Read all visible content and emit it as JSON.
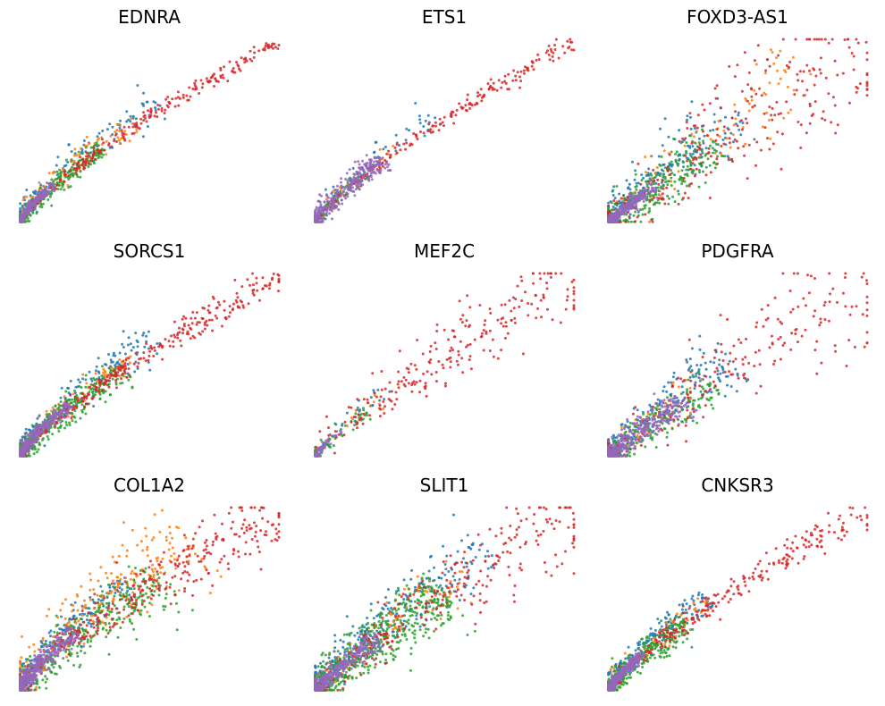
{
  "figure": {
    "layout": {
      "rows": 3,
      "cols": 3
    },
    "series_colors": {
      "blue": "#1f77b4",
      "orange": "#ff7f0e",
      "green": "#2ca02c",
      "red": "#d62728",
      "purple": "#9467bd"
    }
  },
  "chart_data": [
    {
      "type": "scatter",
      "title": "EDNRA",
      "xlabel": "",
      "ylabel": "",
      "xlim": [
        0,
        1
      ],
      "ylim": [
        0,
        1
      ],
      "grid": false,
      "axes": "hidden",
      "trend_power": 0.78,
      "series": [
        {
          "color": "blue",
          "count": 110,
          "xmax": 0.55,
          "spread": 0.06,
          "side": -1,
          "sparse": 0.3
        },
        {
          "color": "orange",
          "count": 90,
          "xmax": 0.45,
          "spread": 0.05,
          "side": -0.8,
          "sparse": 0.4
        },
        {
          "color": "green",
          "count": 260,
          "xmax": 0.32,
          "spread": 0.045,
          "side": 0.2,
          "sparse": 0.1
        },
        {
          "color": "red",
          "count": 230,
          "xmax": 1.0,
          "spread": 0.022,
          "side": 0.4,
          "sparse": 0.55
        },
        {
          "color": "purple",
          "count": 230,
          "xmax": 0.13,
          "spread": 0.022,
          "side": 0,
          "sparse": 0
        }
      ]
    },
    {
      "type": "scatter",
      "title": "ETS1",
      "xlabel": "",
      "ylabel": "",
      "xlim": [
        0,
        1
      ],
      "ylim": [
        0,
        1
      ],
      "grid": false,
      "axes": "hidden",
      "trend_power": 0.82,
      "series": [
        {
          "color": "blue",
          "count": 60,
          "xmax": 0.5,
          "spread": 0.05,
          "side": -1,
          "sparse": 0.3
        },
        {
          "color": "orange",
          "count": 30,
          "xmax": 0.35,
          "spread": 0.04,
          "side": -0.6,
          "sparse": 0.3
        },
        {
          "color": "green",
          "count": 90,
          "xmax": 0.2,
          "spread": 0.035,
          "side": 0.2,
          "sparse": 0.1
        },
        {
          "color": "red",
          "count": 200,
          "xmax": 1.0,
          "spread": 0.02,
          "side": 0.3,
          "sparse": 0.55
        },
        {
          "color": "purple",
          "count": 320,
          "xmax": 0.27,
          "spread": 0.05,
          "side": -0.3,
          "sparse": 0.1
        }
      ]
    },
    {
      "type": "scatter",
      "title": "FOXD3-AS1",
      "xlabel": "",
      "ylabel": "",
      "xlim": [
        0,
        1
      ],
      "ylim": [
        0,
        1
      ],
      "grid": false,
      "axes": "hidden",
      "trend_power": 0.95,
      "series": [
        {
          "color": "blue",
          "count": 230,
          "xmax": 0.55,
          "spread": 0.09,
          "side": -0.8,
          "sparse": 0.2
        },
        {
          "color": "orange",
          "count": 90,
          "xmax": 0.8,
          "spread": 0.09,
          "side": -0.6,
          "sparse": 0.4
        },
        {
          "color": "green",
          "count": 320,
          "xmax": 0.42,
          "spread": 0.09,
          "side": 0.3,
          "sparse": 0.15
        },
        {
          "color": "red",
          "count": 260,
          "xmax": 1.0,
          "spread": 0.13,
          "side": 0.1,
          "sparse": 0.65
        },
        {
          "color": "purple",
          "count": 240,
          "xmax": 0.18,
          "spread": 0.035,
          "side": 0,
          "sparse": 0
        }
      ]
    },
    {
      "type": "scatter",
      "title": "SORCS1",
      "xlabel": "",
      "ylabel": "",
      "xlim": [
        0,
        1
      ],
      "ylim": [
        0,
        1
      ],
      "grid": false,
      "axes": "hidden",
      "trend_power": 0.8,
      "series": [
        {
          "color": "blue",
          "count": 160,
          "xmax": 0.55,
          "spread": 0.06,
          "side": -1,
          "sparse": 0.2
        },
        {
          "color": "orange",
          "count": 70,
          "xmax": 0.45,
          "spread": 0.05,
          "side": -0.6,
          "sparse": 0.3
        },
        {
          "color": "green",
          "count": 320,
          "xmax": 0.4,
          "spread": 0.06,
          "side": 0.2,
          "sparse": 0.1
        },
        {
          "color": "red",
          "count": 300,
          "xmax": 1.0,
          "spread": 0.03,
          "side": 0.3,
          "sparse": 0.55
        },
        {
          "color": "purple",
          "count": 300,
          "xmax": 0.2,
          "spread": 0.03,
          "side": -0.6,
          "sparse": 0
        }
      ]
    },
    {
      "type": "scatter",
      "title": "MEF2C",
      "xlabel": "",
      "ylabel": "",
      "xlim": [
        0,
        1
      ],
      "ylim": [
        0,
        1
      ],
      "grid": false,
      "axes": "hidden",
      "trend_power": 0.85,
      "series": [
        {
          "color": "blue",
          "count": 30,
          "xmax": 0.3,
          "spread": 0.04,
          "side": -0.8,
          "sparse": 0.3
        },
        {
          "color": "orange",
          "count": 20,
          "xmax": 0.25,
          "spread": 0.04,
          "side": -0.5,
          "sparse": 0.3
        },
        {
          "color": "green",
          "count": 70,
          "xmax": 0.2,
          "spread": 0.035,
          "side": 0.2,
          "sparse": 0.1
        },
        {
          "color": "red",
          "count": 230,
          "xmax": 1.0,
          "spread": 0.08,
          "side": 0,
          "sparse": 0.7
        },
        {
          "color": "purple",
          "count": 60,
          "xmax": 0.1,
          "spread": 0.025,
          "side": 0,
          "sparse": 0
        }
      ]
    },
    {
      "type": "scatter",
      "title": "PDGFRA",
      "xlabel": "",
      "ylabel": "",
      "xlim": [
        0,
        1
      ],
      "ylim": [
        0,
        1
      ],
      "grid": false,
      "axes": "hidden",
      "trend_power": 0.95,
      "series": [
        {
          "color": "blue",
          "count": 220,
          "xmax": 0.5,
          "spread": 0.08,
          "side": -0.8,
          "sparse": 0.2
        },
        {
          "color": "orange",
          "count": 60,
          "xmax": 0.4,
          "spread": 0.07,
          "side": -0.4,
          "sparse": 0.3
        },
        {
          "color": "green",
          "count": 200,
          "xmax": 0.4,
          "spread": 0.08,
          "side": 0.3,
          "sparse": 0.15
        },
        {
          "color": "red",
          "count": 200,
          "xmax": 1.0,
          "spread": 0.12,
          "side": 0.1,
          "sparse": 0.65
        },
        {
          "color": "purple",
          "count": 330,
          "xmax": 0.3,
          "spread": 0.07,
          "side": 0.1,
          "sparse": 0.1
        }
      ]
    },
    {
      "type": "scatter",
      "title": "COL1A2",
      "xlabel": "",
      "ylabel": "",
      "xlim": [
        0,
        1
      ],
      "ylim": [
        0,
        1
      ],
      "grid": false,
      "axes": "hidden",
      "trend_power": 0.75,
      "series": [
        {
          "color": "blue",
          "count": 220,
          "xmax": 0.45,
          "spread": 0.06,
          "side": -1,
          "sparse": 0.1
        },
        {
          "color": "orange",
          "count": 260,
          "xmax": 0.7,
          "spread": 0.11,
          "side": -0.9,
          "sparse": 0.35
        },
        {
          "color": "green",
          "count": 330,
          "xmax": 0.55,
          "spread": 0.1,
          "side": 0.5,
          "sparse": 0.2
        },
        {
          "color": "red",
          "count": 330,
          "xmax": 1.0,
          "spread": 0.07,
          "side": 0.3,
          "sparse": 0.55
        },
        {
          "color": "purple",
          "count": 340,
          "xmax": 0.22,
          "spread": 0.05,
          "side": 0,
          "sparse": 0
        }
      ]
    },
    {
      "type": "scatter",
      "title": "SLIT1",
      "xlabel": "",
      "ylabel": "",
      "xlim": [
        0,
        1
      ],
      "ylim": [
        0,
        1
      ],
      "grid": false,
      "axes": "hidden",
      "trend_power": 0.9,
      "series": [
        {
          "color": "blue",
          "count": 300,
          "xmax": 0.7,
          "spread": 0.08,
          "side": -1,
          "sparse": 0.2
        },
        {
          "color": "orange",
          "count": 110,
          "xmax": 0.6,
          "spread": 0.07,
          "side": -0.5,
          "sparse": 0.35
        },
        {
          "color": "green",
          "count": 560,
          "xmax": 0.5,
          "spread": 0.1,
          "side": 0.1,
          "sparse": 0.15
        },
        {
          "color": "red",
          "count": 260,
          "xmax": 1.0,
          "spread": 0.1,
          "side": 0.1,
          "sparse": 0.6
        },
        {
          "color": "purple",
          "count": 340,
          "xmax": 0.25,
          "spread": 0.05,
          "side": 0,
          "sparse": 0
        }
      ]
    },
    {
      "type": "scatter",
      "title": "CNKSR3",
      "xlabel": "",
      "ylabel": "",
      "xlim": [
        0,
        1
      ],
      "ylim": [
        0,
        1
      ],
      "grid": false,
      "axes": "hidden",
      "trend_power": 0.8,
      "series": [
        {
          "color": "blue",
          "count": 220,
          "xmax": 0.4,
          "spread": 0.05,
          "side": -1,
          "sparse": 0.15
        },
        {
          "color": "orange",
          "count": 70,
          "xmax": 0.4,
          "spread": 0.05,
          "side": -0.6,
          "sparse": 0.3
        },
        {
          "color": "green",
          "count": 300,
          "xmax": 0.3,
          "spread": 0.06,
          "side": 0.3,
          "sparse": 0.1
        },
        {
          "color": "red",
          "count": 240,
          "xmax": 1.0,
          "spread": 0.04,
          "side": 0.3,
          "sparse": 0.55
        },
        {
          "color": "purple",
          "count": 280,
          "xmax": 0.14,
          "spread": 0.03,
          "side": 0,
          "sparse": 0
        }
      ]
    }
  ]
}
